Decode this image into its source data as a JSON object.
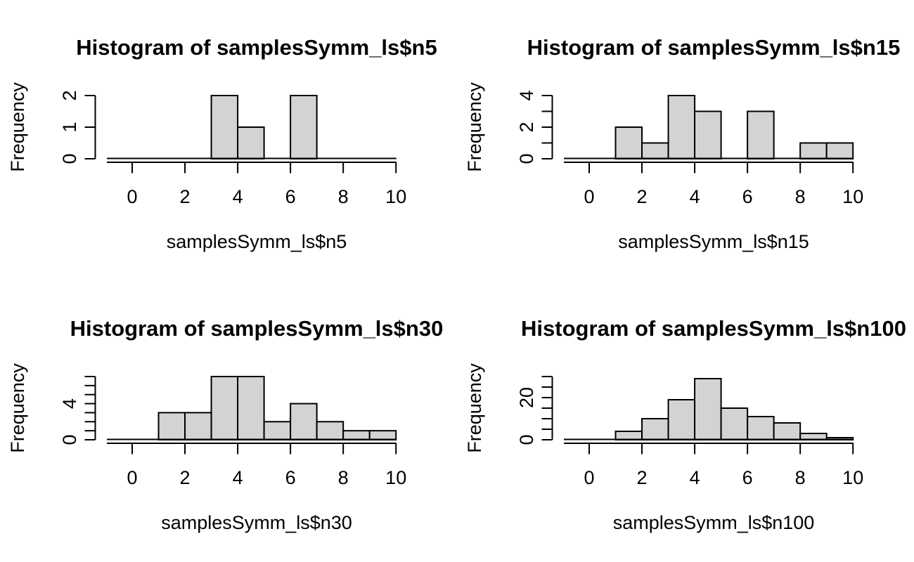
{
  "figure": {
    "background": "#ffffff",
    "layout": "2x2-grid",
    "description": "Four R base-graphics histograms of symmetric samples at increasing sample sizes"
  },
  "chart_data": [
    {
      "type": "bar",
      "subtype": "histogram",
      "title": "Histogram of samplesSymm_ls$n5",
      "xlabel": "samplesSymm_ls$n5",
      "ylabel": "Frequency",
      "bin_start": 0,
      "bin_width": 1,
      "counts": [
        0,
        0,
        0,
        2,
        1,
        0,
        2,
        0,
        0,
        0
      ],
      "xlim": [
        0,
        10
      ],
      "ylim": [
        0,
        2
      ],
      "x_ticks": [
        0,
        2,
        4,
        6,
        8,
        10
      ],
      "y_tick_step": 1,
      "y_tick_max": 2,
      "y_labeled_ticks": [
        0,
        1,
        2
      ],
      "bar_fill": "#d3d3d3",
      "bar_stroke": "#000000",
      "grid": "off",
      "legend": "none"
    },
    {
      "type": "bar",
      "subtype": "histogram",
      "title": "Histogram of samplesSymm_ls$n15",
      "xlabel": "samplesSymm_ls$n15",
      "ylabel": "Frequency",
      "bin_start": 0,
      "bin_width": 1,
      "counts": [
        0,
        2,
        1,
        4,
        3,
        0,
        3,
        0,
        1,
        1
      ],
      "xlim": [
        0,
        10
      ],
      "ylim": [
        0,
        4
      ],
      "x_ticks": [
        0,
        2,
        4,
        6,
        8,
        10
      ],
      "y_tick_step": 1,
      "y_tick_max": 4,
      "y_labeled_ticks": [
        0,
        2,
        4
      ],
      "bar_fill": "#d3d3d3",
      "bar_stroke": "#000000",
      "grid": "off",
      "legend": "none"
    },
    {
      "type": "bar",
      "subtype": "histogram",
      "title": "Histogram of samplesSymm_ls$n30",
      "xlabel": "samplesSymm_ls$n30",
      "ylabel": "Frequency",
      "bin_start": 0,
      "bin_width": 1,
      "counts": [
        0,
        3,
        3,
        7,
        7,
        2,
        4,
        2,
        1,
        1
      ],
      "xlim": [
        0,
        10
      ],
      "ylim": [
        0,
        7
      ],
      "x_ticks": [
        0,
        2,
        4,
        6,
        8,
        10
      ],
      "y_tick_step": 1,
      "y_tick_max": 7,
      "y_labeled_ticks": [
        0,
        4
      ],
      "bar_fill": "#d3d3d3",
      "bar_stroke": "#000000",
      "grid": "off",
      "legend": "none"
    },
    {
      "type": "bar",
      "subtype": "histogram",
      "title": "Histogram of samplesSymm_ls$n100",
      "xlabel": "samplesSymm_ls$n100",
      "ylabel": "Frequency",
      "bin_start": 0,
      "bin_width": 1,
      "counts": [
        0,
        4,
        10,
        19,
        29,
        15,
        11,
        8,
        3,
        1
      ],
      "xlim": [
        0,
        10
      ],
      "ylim": [
        0,
        30
      ],
      "x_ticks": [
        0,
        2,
        4,
        6,
        8,
        10
      ],
      "y_tick_step": 5,
      "y_tick_max": 30,
      "y_labeled_ticks": [
        0,
        20
      ],
      "bar_fill": "#d3d3d3",
      "bar_stroke": "#000000",
      "grid": "off",
      "legend": "none"
    }
  ]
}
